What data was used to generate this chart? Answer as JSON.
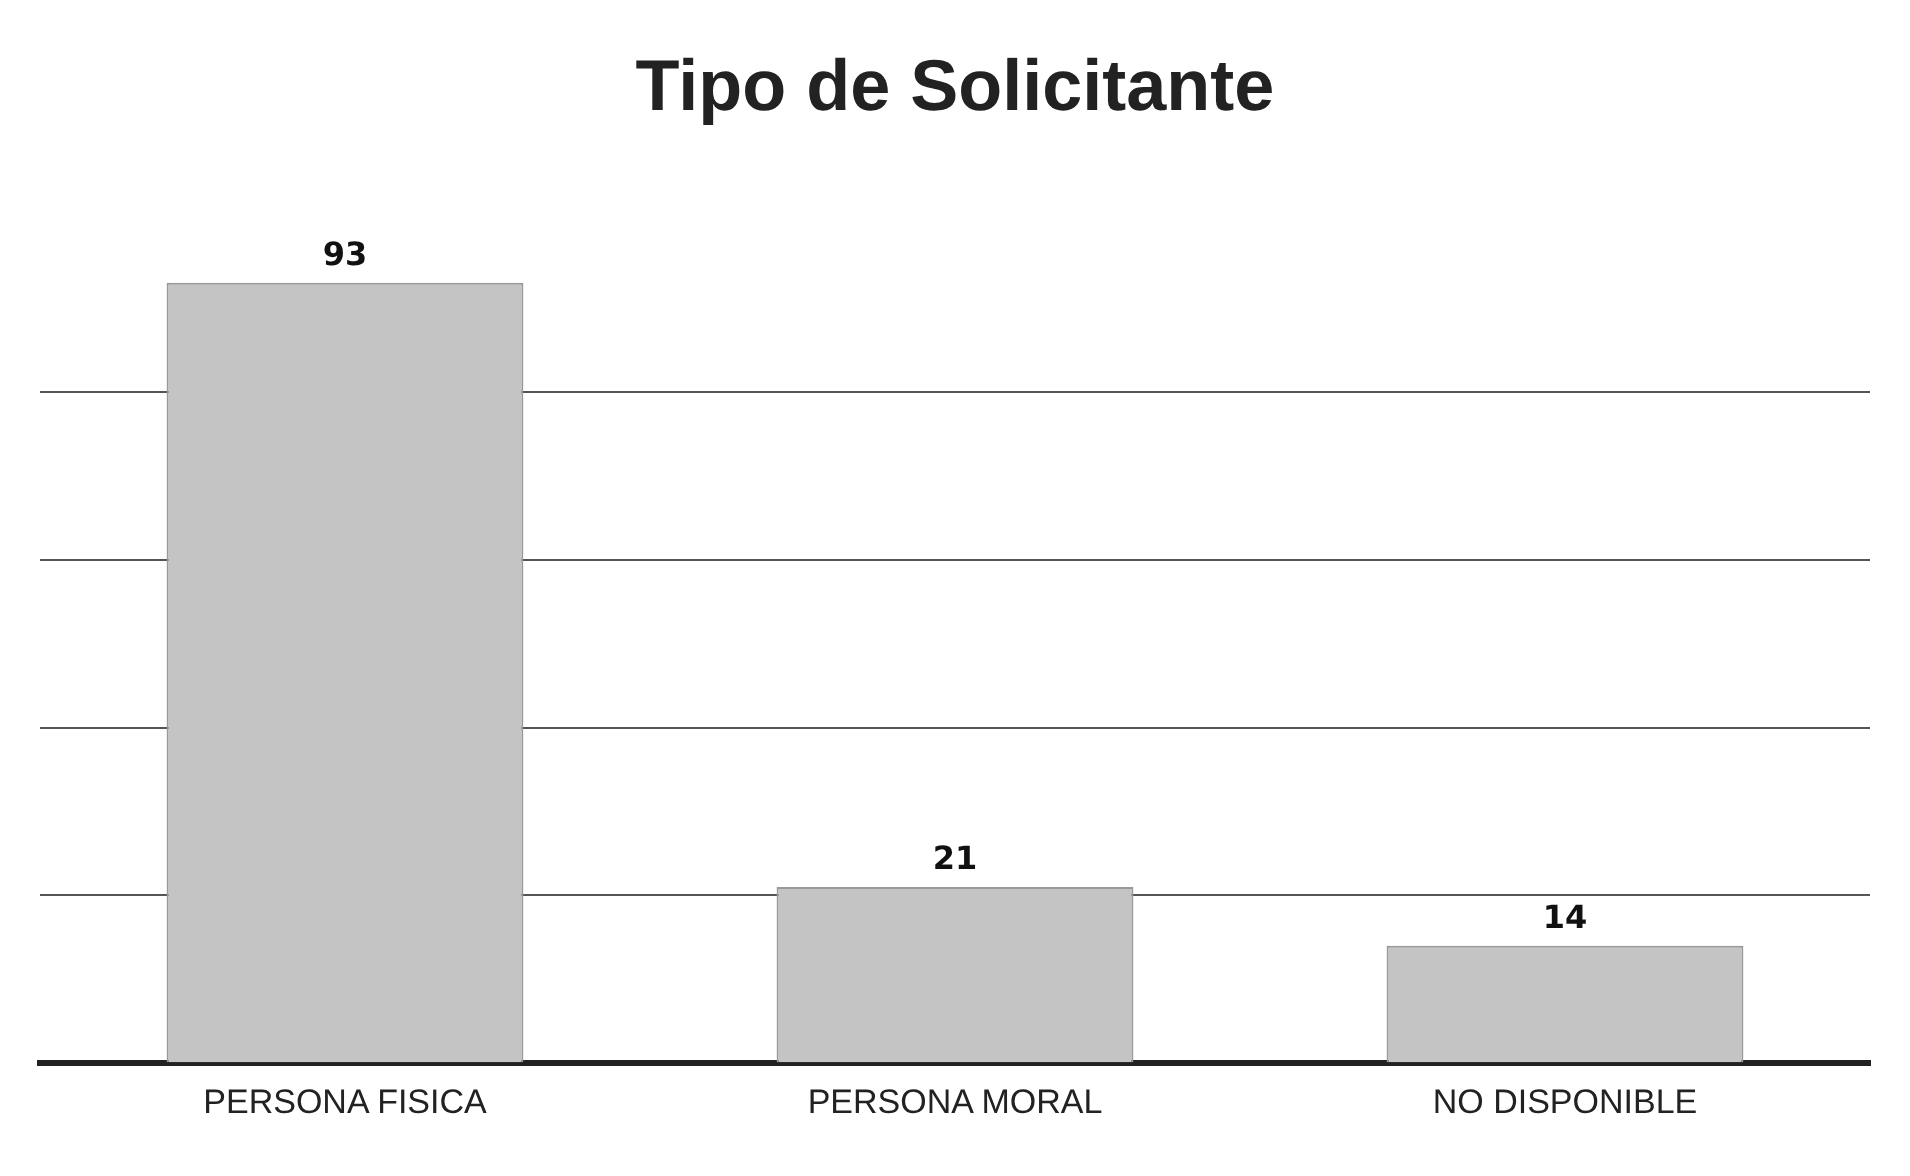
{
  "chart_data": {
    "type": "bar",
    "title": "Tipo de Solicitante",
    "categories": [
      "PERSONA FISICA",
      "PERSONA MORAL",
      "NO DISPONIBLE"
    ],
    "values": [
      93,
      21,
      14
    ],
    "color": "#c4c4c4",
    "data_labels": true,
    "yticks": [
      {
        "value": 0,
        "label": null
      },
      {
        "value": 20,
        "label": null
      },
      {
        "value": 40,
        "label": null
      },
      {
        "value": 60,
        "label": null
      },
      {
        "value": 80,
        "label": null
      }
    ],
    "grid": "y",
    "tick_labels": "x",
    "legend": false
  }
}
